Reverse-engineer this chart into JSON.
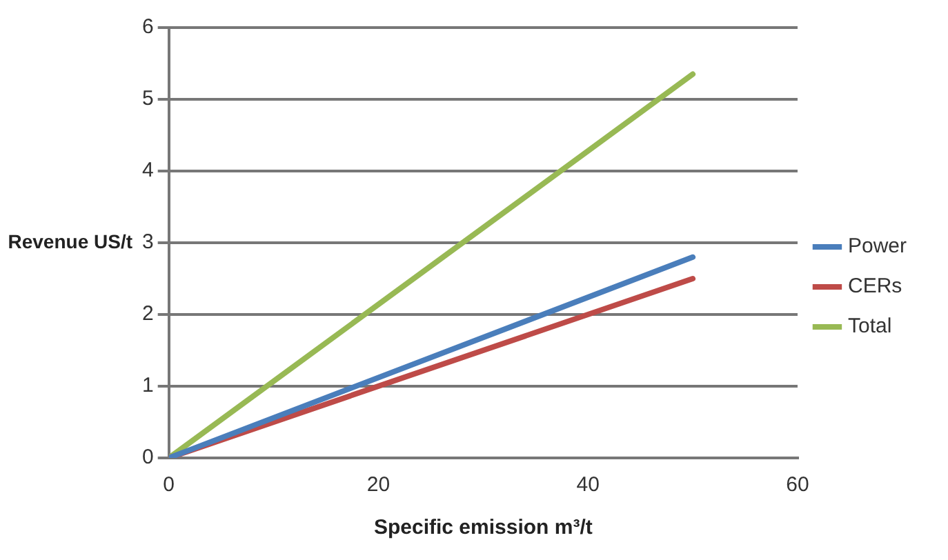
{
  "chart_data": {
    "type": "line",
    "xlabel": "Specific emission m³/t",
    "ylabel": "Revenue US/t",
    "x": [
      0,
      50
    ],
    "series": [
      {
        "name": "Power",
        "color": "#4a7ebb",
        "values": [
          0,
          2.8
        ]
      },
      {
        "name": "CERs",
        "color": "#be4b48",
        "values": [
          0,
          2.5
        ]
      },
      {
        "name": "Total",
        "color": "#98b954",
        "values": [
          0,
          5.35
        ]
      }
    ],
    "xlim": [
      0,
      60
    ],
    "xticks": [
      0,
      20,
      40,
      60
    ],
    "ylim": [
      0,
      6
    ],
    "yticks": [
      0,
      1,
      2,
      3,
      4,
      5,
      6
    ],
    "grid": "y",
    "legend": "right",
    "marker": "none",
    "line_style": "solid"
  }
}
